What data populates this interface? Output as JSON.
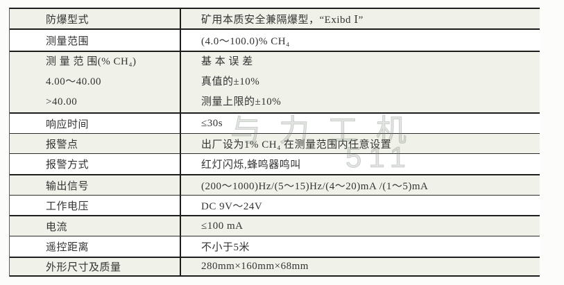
{
  "colors": {
    "page_background": "#fcfcfa",
    "row_shade": "#f0f1e9",
    "row_white": "#ffffff",
    "rule_line": "#1c1c1c",
    "text": "#333333",
    "watermark": "#808a80"
  },
  "table": {
    "rows": [
      {
        "label": "防爆型式",
        "value": "矿用本质安全兼隔爆型，“Exibd Ⅰ”"
      },
      {
        "label": "测量范围",
        "value": "(4.0～100.0)% CH₄"
      },
      {
        "label_lines": [
          "测 量 范 围(% CH₄)",
          "4.00～40.00",
          ">40.00"
        ],
        "value_lines": [
          "基 本 误 差",
          "真值的±10%",
          "测量上限的±10%"
        ]
      },
      {
        "label": "响应时间",
        "value": "≤30s"
      },
      {
        "label": "报警点",
        "value": "出厂设为1% CH₄ 在测量范围内任意设置"
      },
      {
        "label": "报警方式",
        "value": "红灯闪烁,蜂鸣器鸣叫"
      },
      {
        "label": "输出信号",
        "value": "(200～1000)Hz/(5～15)Hz/(4～20)mA /(1～5)mA"
      },
      {
        "label": "工作电压",
        "value": "DC 9V～24V"
      },
      {
        "label": "电流",
        "value": "≤100 mA"
      },
      {
        "label": "遥控距离",
        "value": "不小于5米"
      },
      {
        "label": "外形尺寸及质量",
        "value": "280mm×160mm×68mm"
      }
    ]
  },
  "watermark": {
    "line1": "与力工机",
    "line2": "511"
  }
}
